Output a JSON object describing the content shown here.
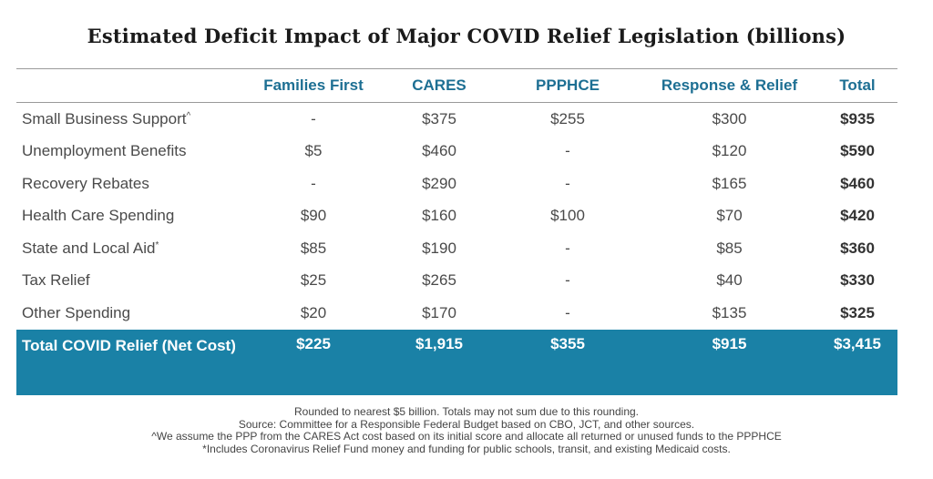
{
  "title": "Estimated Deficit Impact of Major COVID Relief Legislation (billions)",
  "table": {
    "columns": [
      "",
      "Families First",
      "CARES",
      "PPPHCE",
      "Response & Relief",
      "Total"
    ],
    "rows": [
      {
        "label": "Small Business Support",
        "mark": "^",
        "values": [
          "-",
          "$375",
          "$255",
          "$300"
        ],
        "total": "$935"
      },
      {
        "label": "Unemployment Benefits",
        "mark": "",
        "values": [
          "$5",
          "$460",
          "-",
          "$120"
        ],
        "total": "$590"
      },
      {
        "label": "Recovery Rebates",
        "mark": "",
        "values": [
          "-",
          "$290",
          "-",
          "$165"
        ],
        "total": "$460"
      },
      {
        "label": "Health Care Spending",
        "mark": "",
        "values": [
          "$90",
          "$160",
          "$100",
          "$70"
        ],
        "total": "$420"
      },
      {
        "label": "State and Local Aid",
        "mark": "*",
        "values": [
          "$85",
          "$190",
          "-",
          "$85"
        ],
        "total": "$360"
      },
      {
        "label": "Tax Relief",
        "mark": "",
        "values": [
          "$25",
          "$265",
          "-",
          "$40"
        ],
        "total": "$330"
      },
      {
        "label": "Other Spending",
        "mark": "",
        "values": [
          "$20",
          "$170",
          "-",
          "$135"
        ],
        "total": "$325"
      }
    ],
    "grand_total": {
      "label": "Total COVID Relief (Net Cost)",
      "values": [
        "$225",
        "$1,915",
        "$355",
        "$915"
      ],
      "total": "$3,415"
    },
    "colors": {
      "header_text": "#1d6f93",
      "total_row_bg": "#1a81a6",
      "total_row_text": "#ffffff"
    }
  },
  "notes": [
    "Rounded to nearest $5 billion. Totals may not sum due to this rounding.",
    "Source: Committee for a Responsible Federal Budget based on CBO, JCT, and other sources.",
    "^We assume the PPP from the CARES Act cost based on its initial score and allocate all returned or unused funds to the PPPHCE",
    "*Includes Coronavirus Relief Fund money and funding for public schools, transit, and existing Medicaid costs."
  ]
}
